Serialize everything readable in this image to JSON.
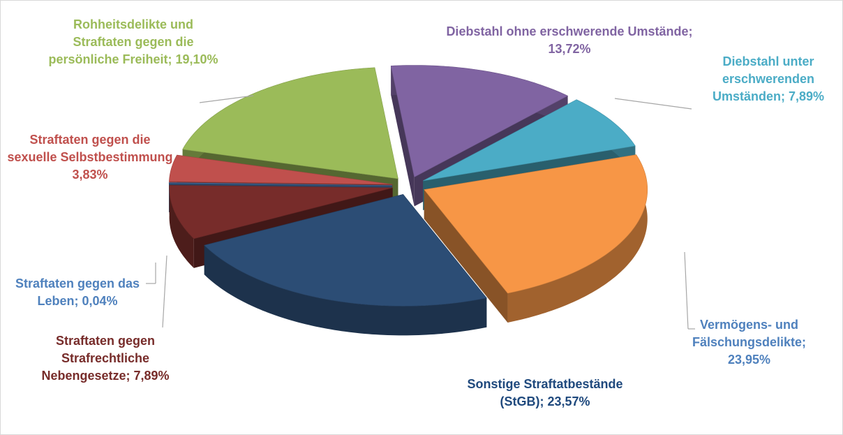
{
  "chart_data": {
    "type": "pie3d",
    "categories": [
      "Diebstahl ohne erschwerende Umstände",
      "Diebstahl unter erschwerenden Umständen",
      "Vermögens- und Fälschungsdelikte",
      "Sonstige Straftatbestände (StGB)",
      "Straftaten gegen Strafrechtliche Nebengesetze",
      "Straftaten gegen das Leben",
      "Straftaten gegen die sexuelle Selbstbestimmung",
      "Rohheitsdelikte und Straftaten gegen die persönliche Freiheit"
    ],
    "values": [
      13.72,
      7.89,
      23.95,
      23.57,
      7.89,
      0.04,
      3.83,
      19.1
    ],
    "value_labels": [
      "; 13,72%",
      "; 7,89%",
      "; 23,95%",
      "; 23,57%",
      "; 7,89%",
      "; 0,04%",
      "3,83%",
      "; 19,10%"
    ],
    "colors": [
      "#8064a2",
      "#4bacc6",
      "#f79646",
      "#2c4d75",
      "#772c2a",
      "#4f81bd",
      "#c0504d",
      "#9bbb59"
    ],
    "label_colors": [
      "#8064a2",
      "#4bacc6",
      "#4f81bd",
      "#1f497d",
      "#772c2a",
      "#4f81bd",
      "#c0504d",
      "#9bbb59"
    ]
  }
}
